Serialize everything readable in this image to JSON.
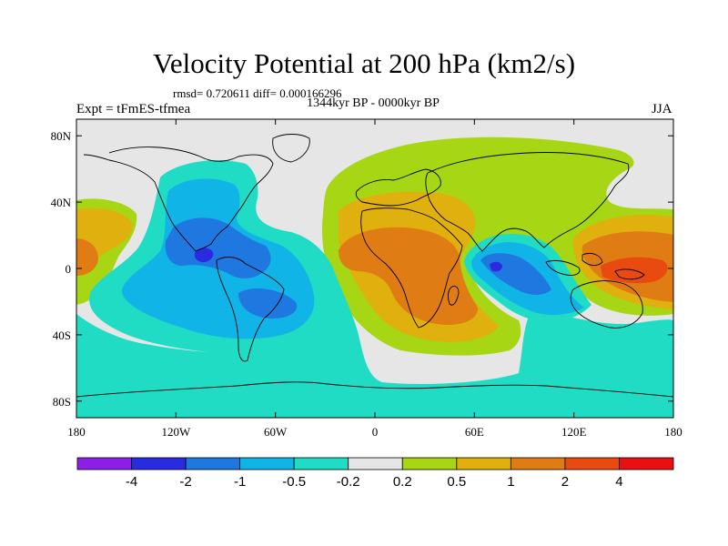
{
  "header": {
    "title": "Velocity Potential at 200 hPa (km2/s)",
    "stats": "rmsd= 0.720611  diff= 0.000166296",
    "period": "1344kyr BP - 0000kyr BP",
    "experiment": "Expt = tFmES-tfmea",
    "season": "JJA"
  },
  "map": {
    "lon_range": [
      -180,
      180
    ],
    "lat_range": [
      -90,
      90
    ],
    "x_ticks": [
      {
        "lon": -180,
        "label": "180"
      },
      {
        "lon": -120,
        "label": "120W"
      },
      {
        "lon": -60,
        "label": "60W"
      },
      {
        "lon": 0,
        "label": "0"
      },
      {
        "lon": 60,
        "label": "60E"
      },
      {
        "lon": 120,
        "label": "120E"
      },
      {
        "lon": 180,
        "label": "180"
      }
    ],
    "y_ticks": [
      {
        "lat": 80,
        "label": "80N"
      },
      {
        "lat": 40,
        "label": "40N"
      },
      {
        "lat": 0,
        "label": "0"
      },
      {
        "lat": -40,
        "label": "40S"
      },
      {
        "lat": -80,
        "label": "80S"
      }
    ]
  },
  "colorbar": {
    "colors": [
      "#8c1ee8",
      "#2a2ae0",
      "#1e78e0",
      "#10b4e6",
      "#20dcc4",
      "#e6e6e6",
      "#a6d614",
      "#e0b00e",
      "#e07c14",
      "#e84a10",
      "#e81010"
    ],
    "labels": [
      "-4",
      "-2",
      "-1",
      "-0.5",
      "-0.2",
      "0.2",
      "0.5",
      "1",
      "2",
      "4"
    ]
  }
}
